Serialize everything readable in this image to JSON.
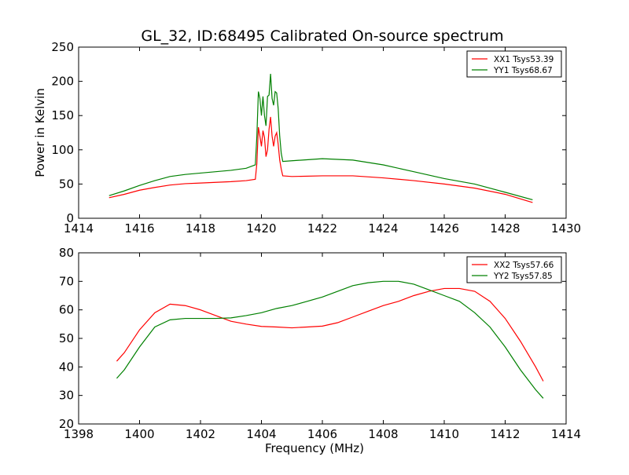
{
  "title": "GL_32, ID:68495 Calibrated On-source spectrum",
  "chart_data": [
    {
      "type": "line",
      "ylabel": "Power in Kelvin",
      "xlabel": "",
      "xlim": [
        1414,
        1430
      ],
      "ylim": [
        0,
        250
      ],
      "xticks": [
        "1414",
        "1416",
        "1418",
        "1420",
        "1422",
        "1424",
        "1426",
        "1428",
        "1430"
      ],
      "yticks": [
        "0",
        "50",
        "100",
        "150",
        "200",
        "250"
      ],
      "legend_position": "top-right",
      "series": [
        {
          "name": "XX1 Tsys53.39",
          "color": "#ff0000",
          "points": [
            [
              1415.0,
              30
            ],
            [
              1415.5,
              35
            ],
            [
              1416,
              41
            ],
            [
              1416.5,
              45
            ],
            [
              1417,
              48.5
            ],
            [
              1417.5,
              50.5
            ],
            [
              1418,
              51.5
            ],
            [
              1418.5,
              52.5
            ],
            [
              1419,
              53.5
            ],
            [
              1419.5,
              55
            ],
            [
              1419.8,
              57
            ],
            [
              1419.85,
              80
            ],
            [
              1419.9,
              133
            ],
            [
              1419.95,
              120
            ],
            [
              1420.0,
              105
            ],
            [
              1420.05,
              128
            ],
            [
              1420.1,
              118
            ],
            [
              1420.15,
              90
            ],
            [
              1420.2,
              100
            ],
            [
              1420.25,
              130
            ],
            [
              1420.3,
              148
            ],
            [
              1420.35,
              120
            ],
            [
              1420.4,
              105
            ],
            [
              1420.45,
              120
            ],
            [
              1420.5,
              125
            ],
            [
              1420.55,
              108
            ],
            [
              1420.6,
              85
            ],
            [
              1420.65,
              72
            ],
            [
              1420.7,
              62
            ],
            [
              1421,
              61
            ],
            [
              1422,
              62
            ],
            [
              1423,
              62
            ],
            [
              1424,
              59
            ],
            [
              1425,
              55
            ],
            [
              1426,
              50
            ],
            [
              1427,
              44
            ],
            [
              1428,
              35
            ],
            [
              1428.9,
              23
            ]
          ]
        },
        {
          "name": "YY1 Tsys68.67",
          "color": "#008000",
          "points": [
            [
              1415.0,
              33
            ],
            [
              1415.5,
              40
            ],
            [
              1416,
              48
            ],
            [
              1416.5,
              55
            ],
            [
              1417,
              61
            ],
            [
              1417.5,
              64
            ],
            [
              1418,
              66
            ],
            [
              1418.5,
              68
            ],
            [
              1419,
              70
            ],
            [
              1419.5,
              73
            ],
            [
              1419.8,
              78
            ],
            [
              1419.85,
              120
            ],
            [
              1419.9,
              185
            ],
            [
              1419.95,
              175
            ],
            [
              1420.0,
              150
            ],
            [
              1420.05,
              178
            ],
            [
              1420.1,
              150
            ],
            [
              1420.15,
              135
            ],
            [
              1420.2,
              178
            ],
            [
              1420.25,
              180
            ],
            [
              1420.3,
              211
            ],
            [
              1420.35,
              175
            ],
            [
              1420.4,
              165
            ],
            [
              1420.45,
              185
            ],
            [
              1420.5,
              183
            ],
            [
              1420.55,
              160
            ],
            [
              1420.6,
              120
            ],
            [
              1420.65,
              95
            ],
            [
              1420.7,
              83
            ],
            [
              1421,
              84
            ],
            [
              1422,
              87
            ],
            [
              1423,
              85
            ],
            [
              1424,
              78
            ],
            [
              1425,
              68
            ],
            [
              1426,
              58
            ],
            [
              1427,
              50
            ],
            [
              1428,
              38
            ],
            [
              1428.9,
              27
            ]
          ]
        }
      ]
    },
    {
      "type": "line",
      "ylabel": "",
      "xlabel": "Frequency (MHz)",
      "xlim": [
        1398,
        1414
      ],
      "ylim": [
        20,
        80
      ],
      "xticks": [
        "1398",
        "1400",
        "1402",
        "1404",
        "1406",
        "1408",
        "1410",
        "1412",
        "1414"
      ],
      "yticks": [
        "20",
        "30",
        "40",
        "50",
        "60",
        "70",
        "80"
      ],
      "legend_position": "top-right",
      "series": [
        {
          "name": "XX2 Tsys57.66",
          "color": "#ff0000",
          "points": [
            [
              1399.25,
              42
            ],
            [
              1399.5,
              45
            ],
            [
              1400,
              53
            ],
            [
              1400.5,
              59
            ],
            [
              1401,
              62
            ],
            [
              1401.5,
              61.5
            ],
            [
              1402,
              60
            ],
            [
              1402.5,
              58
            ],
            [
              1403,
              56
            ],
            [
              1403.5,
              55
            ],
            [
              1404,
              54.2
            ],
            [
              1404.5,
              54
            ],
            [
              1405,
              53.7
            ],
            [
              1405.5,
              54
            ],
            [
              1406,
              54.3
            ],
            [
              1406.5,
              55.5
            ],
            [
              1407,
              57.5
            ],
            [
              1407.5,
              59.5
            ],
            [
              1408,
              61.5
            ],
            [
              1408.5,
              63
            ],
            [
              1409,
              65
            ],
            [
              1409.5,
              66.5
            ],
            [
              1410,
              67.5
            ],
            [
              1410.5,
              67.5
            ],
            [
              1411,
              66.5
            ],
            [
              1411.5,
              63
            ],
            [
              1412,
              57
            ],
            [
              1412.5,
              49
            ],
            [
              1413,
              40
            ],
            [
              1413.25,
              35
            ]
          ]
        },
        {
          "name": "YY2 Tsys57.85",
          "color": "#008000",
          "points": [
            [
              1399.25,
              36
            ],
            [
              1399.5,
              39
            ],
            [
              1400,
              47
            ],
            [
              1400.5,
              54
            ],
            [
              1401,
              56.5
            ],
            [
              1401.5,
              57
            ],
            [
              1402,
              57
            ],
            [
              1402.5,
              57
            ],
            [
              1403,
              57.2
            ],
            [
              1403.5,
              58
            ],
            [
              1404,
              59
            ],
            [
              1404.5,
              60.5
            ],
            [
              1405,
              61.5
            ],
            [
              1405.5,
              63
            ],
            [
              1406,
              64.5
            ],
            [
              1406.5,
              66.5
            ],
            [
              1407,
              68.5
            ],
            [
              1407.5,
              69.5
            ],
            [
              1408,
              70
            ],
            [
              1408.5,
              70
            ],
            [
              1409,
              69
            ],
            [
              1409.5,
              67
            ],
            [
              1410,
              65
            ],
            [
              1410.5,
              63
            ],
            [
              1411,
              59
            ],
            [
              1411.5,
              54
            ],
            [
              1412,
              47
            ],
            [
              1412.5,
              39
            ],
            [
              1413,
              32
            ],
            [
              1413.25,
              29
            ]
          ]
        }
      ]
    }
  ]
}
